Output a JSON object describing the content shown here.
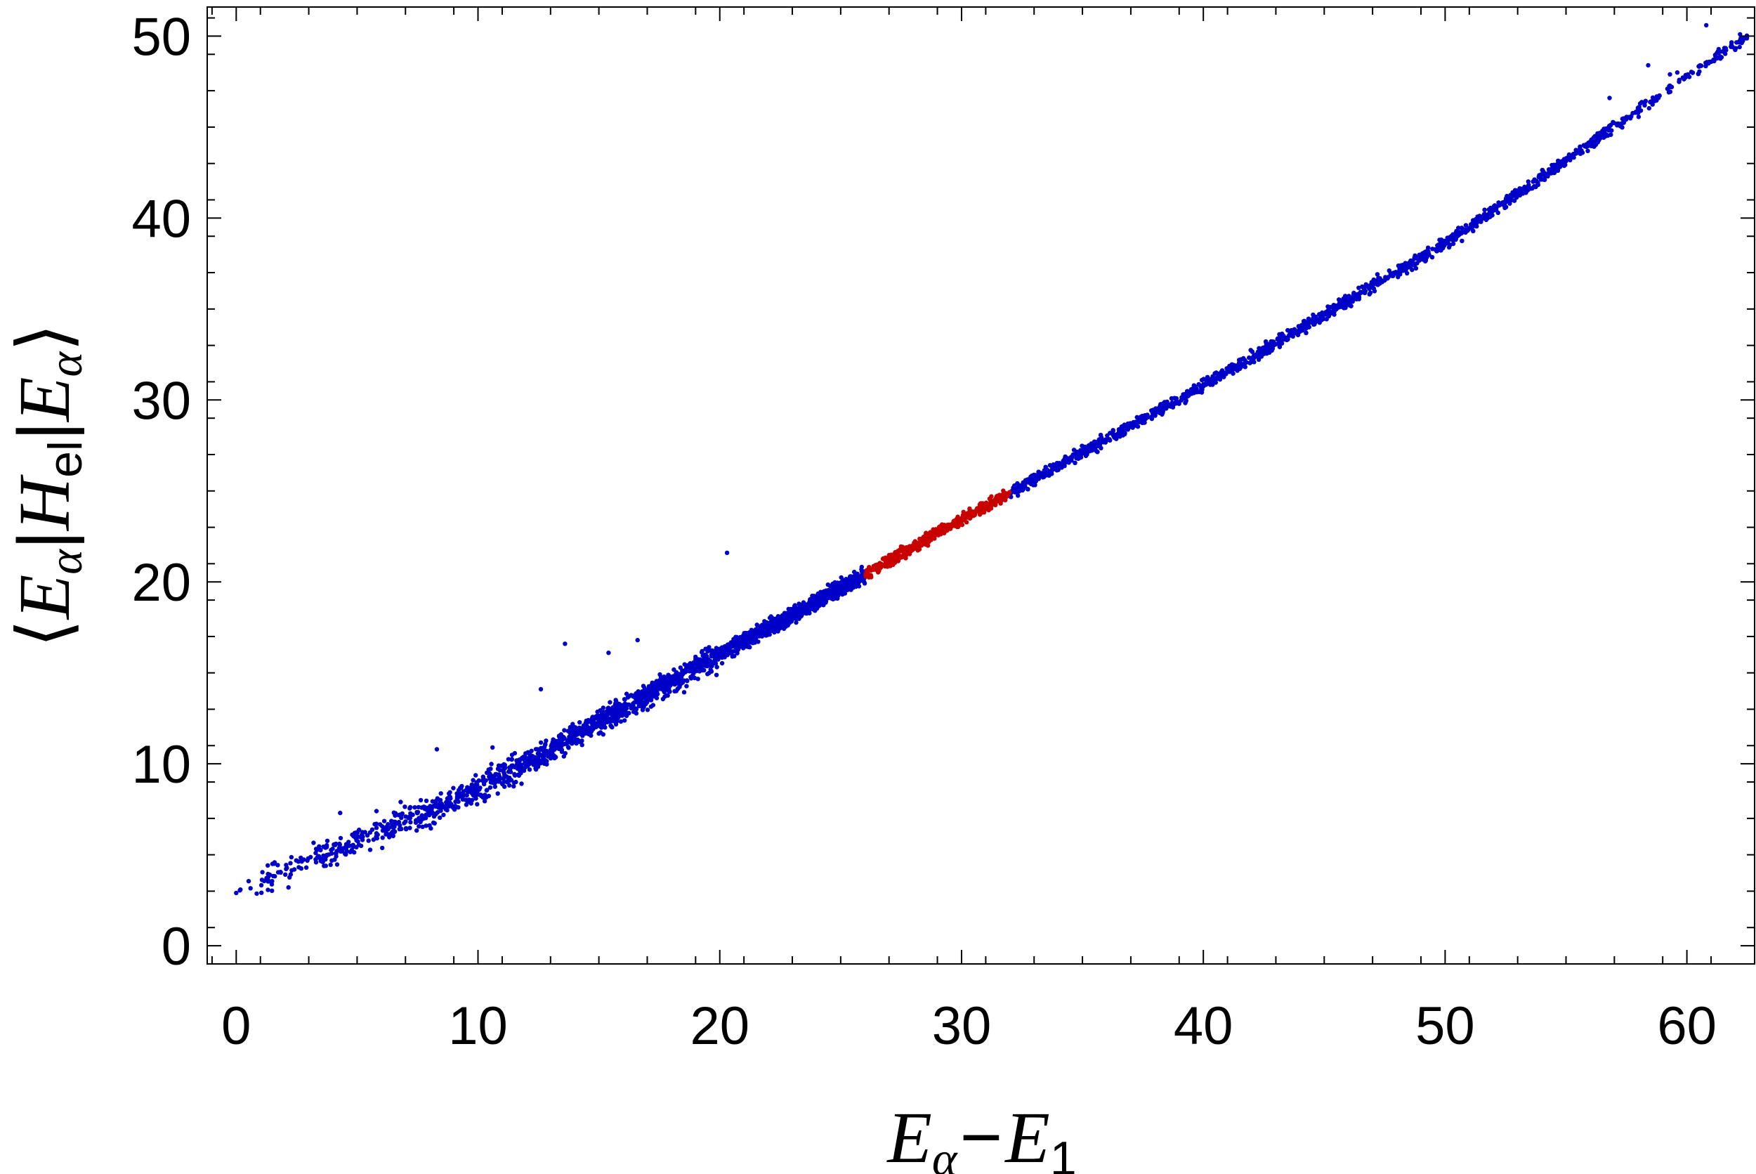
{
  "chart_data": {
    "type": "scatter",
    "xlabel": "Eα−E1",
    "ylabel": "⟨Eα|Hel|Eα⟩",
    "xlim": [
      -1.2,
      62.8
    ],
    "ylim": [
      -1,
      51.6
    ],
    "x_ticks": [
      0,
      10,
      20,
      30,
      40,
      50,
      60
    ],
    "y_ticks": [
      0,
      10,
      20,
      30,
      40,
      50
    ],
    "x_tick_labels": [
      "0",
      "10",
      "20",
      "30",
      "40",
      "50",
      "60"
    ],
    "y_tick_labels": [
      "0",
      "10",
      "20",
      "30",
      "40",
      "50"
    ],
    "grid": false,
    "legend": "none",
    "series": [
      {
        "color": "#0000c8",
        "segments": [
          {
            "x_range": [
              0,
              26
            ],
            "trend": [
              [
                0,
                3.0
              ],
              [
                10,
                8.6
              ],
              [
                20,
                16.0
              ],
              [
                26,
                20.4
              ]
            ]
          },
          {
            "x_range": [
              32,
              62.5
            ],
            "trend": [
              [
                32,
                24.9
              ],
              [
                40,
                30.8
              ],
              [
                50,
                38.6
              ],
              [
                60,
                47.8
              ],
              [
                62.5,
                50.0
              ]
            ]
          }
        ],
        "approx_points": 4500,
        "sample_points": [
          [
            0.0,
            2.9
          ],
          [
            1.5,
            4.5
          ],
          [
            2.9,
            4.3
          ],
          [
            3.6,
            4.8
          ],
          [
            4.3,
            7.3
          ],
          [
            4.9,
            6.2
          ],
          [
            5.8,
            7.4
          ],
          [
            6.4,
            6.1
          ],
          [
            6.8,
            7.9
          ],
          [
            7.3,
            7.2
          ],
          [
            8.3,
            10.8
          ],
          [
            8.5,
            7.8
          ],
          [
            9.8,
            9.1
          ],
          [
            10.6,
            10.9
          ],
          [
            12.6,
            14.1
          ],
          [
            13.6,
            16.6
          ],
          [
            15.4,
            16.1
          ],
          [
            16.6,
            16.8
          ],
          [
            20.3,
            21.6
          ],
          [
            60.8,
            50.6
          ],
          [
            62.2,
            50.1
          ],
          [
            58.4,
            48.4
          ],
          [
            59.3,
            47.9
          ],
          [
            59.6,
            48.0
          ],
          [
            56.8,
            46.6
          ],
          [
            57.3,
            45.2
          ]
        ]
      },
      {
        "color": "#c80000",
        "x_range": [
          26,
          32
        ],
        "trend": [
          [
            26,
            20.4
          ],
          [
            29,
            22.7
          ],
          [
            32,
            24.9
          ]
        ],
        "approx_points": 500
      }
    ]
  }
}
